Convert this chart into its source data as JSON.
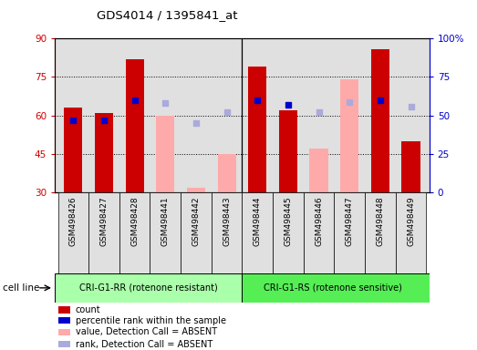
{
  "title": "GDS4014 / 1395841_at",
  "samples": [
    "GSM498426",
    "GSM498427",
    "GSM498428",
    "GSM498441",
    "GSM498442",
    "GSM498443",
    "GSM498444",
    "GSM498445",
    "GSM498446",
    "GSM498447",
    "GSM498448",
    "GSM498449"
  ],
  "group1_label": "CRI-G1-RR (rotenone resistant)",
  "group2_label": "CRI-G1-RS (rotenone sensitive)",
  "cell_line_label": "cell line",
  "red_values": [
    63,
    61,
    82,
    null,
    null,
    null,
    79,
    62,
    null,
    null,
    86,
    50
  ],
  "pink_values": [
    null,
    null,
    null,
    60,
    32,
    45,
    null,
    null,
    47,
    74,
    null,
    null
  ],
  "blue_present_values": [
    47,
    47,
    60,
    null,
    null,
    null,
    60,
    57,
    null,
    null,
    60,
    null
  ],
  "blue_absent_values": [
    null,
    null,
    null,
    58,
    45,
    52,
    null,
    null,
    52,
    59,
    null,
    56
  ],
  "ylim_left": [
    30,
    90
  ],
  "ylim_right": [
    0,
    100
  ],
  "yticks_left": [
    30,
    45,
    60,
    75,
    90
  ],
  "yticks_right": [
    0,
    25,
    50,
    75,
    100
  ],
  "ytick_labels_right": [
    "0",
    "25",
    "50",
    "75",
    "100%"
  ],
  "bar_width": 0.6,
  "red_color": "#CC0000",
  "pink_color": "#FFAAAA",
  "blue_present_color": "#0000CC",
  "blue_absent_color": "#AAAADD",
  "bg_color": "#E0E0E0",
  "group1_bg": "#AAFFAA",
  "group2_bg": "#55EE55",
  "left_axis_color": "#CC0000",
  "right_axis_color": "#0000CC",
  "fig_bg": "#FFFFFF"
}
